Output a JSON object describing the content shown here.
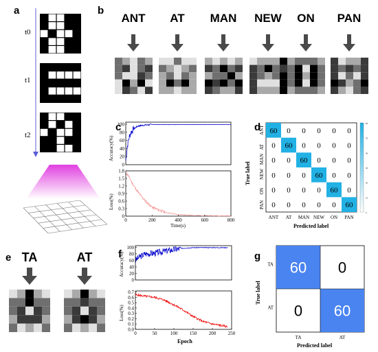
{
  "panels": {
    "a": "a",
    "b": "b",
    "c": "c",
    "d": "d",
    "e": "e",
    "f": "f",
    "g": "g"
  },
  "time_labels": [
    "t0",
    "t1",
    "t2"
  ],
  "patterns_a": [
    [
      1,
      0,
      0,
      1,
      1,
      1,
      0,
      0,
      1,
      1,
      0,
      1,
      0,
      0,
      1,
      1,
      0,
      0,
      1,
      1,
      1,
      0,
      0,
      1,
      1
    ],
    [
      1,
      1,
      1,
      1,
      1,
      1,
      0,
      0,
      0,
      0,
      1,
      1,
      1,
      1,
      1,
      1,
      0,
      0,
      0,
      0,
      1,
      1,
      1,
      1,
      1
    ],
    [
      1,
      0,
      0,
      1,
      1,
      1,
      0,
      1,
      0,
      1,
      0,
      1,
      0,
      0,
      1,
      1,
      1,
      0,
      1,
      1,
      1,
      1,
      0,
      0,
      1
    ]
  ],
  "panel_b": {
    "words": [
      "ANT",
      "AT",
      "MAN",
      "NEW",
      "ON",
      "PAN"
    ],
    "grids": [
      [
        2,
        3,
        4,
        2,
        3,
        2,
        1,
        4,
        2,
        1,
        2,
        4,
        4,
        1,
        2,
        4,
        0,
        3,
        0,
        4,
        4,
        1,
        2,
        4,
        1
      ],
      [
        4,
        4,
        2,
        4,
        4,
        2,
        3,
        4,
        3,
        2,
        3,
        2,
        4,
        2,
        3,
        3,
        0,
        2,
        0,
        3,
        3,
        3,
        4,
        3,
        3
      ],
      [
        3,
        4,
        3,
        4,
        3,
        1,
        2,
        0,
        2,
        1,
        3,
        2,
        2,
        0,
        3,
        0,
        1,
        0,
        2,
        0,
        1,
        2,
        3,
        3,
        1
      ],
      [
        4,
        3,
        3,
        3,
        0,
        1,
        2,
        0,
        2,
        1,
        1,
        2,
        3,
        2,
        0,
        1,
        4,
        4,
        4,
        0,
        1,
        3,
        3,
        3,
        0
      ],
      [
        3,
        2,
        2,
        2,
        3,
        2,
        0,
        4,
        0,
        2,
        2,
        0,
        3,
        0,
        2,
        2,
        0,
        4,
        0,
        2,
        3,
        2,
        2,
        2,
        3
      ],
      [
        1,
        4,
        3,
        3,
        1,
        1,
        2,
        1,
        2,
        1,
        1,
        4,
        2,
        4,
        1,
        0,
        1,
        3,
        2,
        0,
        1,
        3,
        4,
        2,
        1
      ]
    ]
  },
  "panel_e": {
    "words": [
      "TA",
      "AT"
    ],
    "grids": [
      [
        4,
        3,
        0,
        3,
        4,
        2,
        2,
        0,
        2,
        2,
        2,
        1,
        4,
        1,
        2,
        3,
        1,
        1,
        1,
        3,
        2,
        4,
        3,
        4,
        2
      ],
      [
        4,
        3,
        0,
        3,
        4,
        2,
        2,
        1,
        2,
        2,
        2,
        1,
        4,
        1,
        2,
        3,
        1,
        0,
        1,
        3,
        2,
        4,
        3,
        4,
        2
      ]
    ]
  },
  "panel_c": {
    "acc_ylabel": "Accuracy(%)",
    "loss_ylabel": "Loss(%)",
    "xlabel": "Time(s)",
    "acc_ticks": [
      "0",
      "20",
      "40",
      "60",
      "80",
      "100"
    ],
    "loss_ticks": [
      "0",
      "0.3",
      "0.6",
      "0.9",
      "1.2",
      "1.5",
      "1.8"
    ],
    "x_ticks": [
      "0",
      "200",
      "400",
      "600",
      "800"
    ]
  },
  "panel_d": {
    "labels": [
      "ANT",
      "AT",
      "MAN",
      "NEW",
      "ON",
      "PAN"
    ],
    "ylabel": "True label",
    "xlabel": "Predicted label",
    "colorbar_ticks": [
      "60",
      "50",
      "40",
      "30",
      "20",
      "10",
      "0"
    ]
  },
  "panel_f": {
    "acc_ylabel": "Accuracy(%)",
    "loss_ylabel": "Loss(%)",
    "xlabel": "Epoch",
    "acc_ticks": [
      "0",
      "20",
      "40",
      "60",
      "80",
      "100"
    ],
    "loss_ticks": [
      "0.0",
      "0.1",
      "0.2",
      "0.3",
      "0.4",
      "0.5",
      "0.6",
      "0.7"
    ],
    "x_ticks": [
      "0",
      "50",
      "100",
      "150",
      "200",
      "250"
    ]
  },
  "panel_g": {
    "labels": [
      "TA",
      "AT"
    ],
    "ylabel": "True label",
    "xlabel": "Predicted label"
  },
  "colors": {
    "blue": "#0000cc",
    "red": "#ee0000",
    "pink": "#f4a0a0",
    "cm_d": "#22b1e4",
    "cm_g": "#4a84f0",
    "magenta": "#e040e0"
  },
  "chart_data": [
    {
      "type": "table",
      "title": "d",
      "rows": [
        "ANT",
        "AT",
        "MAN",
        "NEW",
        "ON",
        "PAN"
      ],
      "columns": [
        "ANT",
        "AT",
        "MAN",
        "NEW",
        "ON",
        "PAN"
      ],
      "values": [
        [
          60,
          0,
          0,
          0,
          0,
          0
        ],
        [
          0,
          60,
          0,
          0,
          0,
          0
        ],
        [
          0,
          0,
          60,
          0,
          0,
          0
        ],
        [
          0,
          0,
          0,
          60,
          0,
          0
        ],
        [
          0,
          0,
          0,
          0,
          60,
          0
        ],
        [
          0,
          0,
          0,
          0,
          0,
          60
        ]
      ],
      "xlabel": "Predicted label",
      "ylabel": "True label"
    },
    {
      "type": "table",
      "title": "g",
      "rows": [
        "TA",
        "AT"
      ],
      "columns": [
        "TA",
        "AT"
      ],
      "values": [
        [
          60,
          0
        ],
        [
          0,
          60
        ]
      ],
      "xlabel": "Predicted label",
      "ylabel": "True label"
    },
    {
      "type": "line",
      "title": "c",
      "xlabel": "Time(s)",
      "xlim": [
        0,
        800
      ],
      "series": [
        {
          "name": "Accuracy(%)",
          "x": [
            0,
            10,
            20,
            30,
            40,
            60,
            80,
            100,
            150,
            200,
            800
          ],
          "values": [
            10,
            40,
            60,
            72,
            80,
            88,
            93,
            96,
            98,
            99,
            99
          ]
        },
        {
          "name": "Loss(%)",
          "x": [
            0,
            20,
            50,
            100,
            150,
            200,
            300,
            400,
            500,
            600,
            800
          ],
          "values": [
            1.75,
            1.6,
            1.3,
            0.9,
            0.6,
            0.35,
            0.15,
            0.06,
            0.03,
            0.02,
            0.01
          ]
        }
      ]
    },
    {
      "type": "line",
      "title": "f",
      "xlabel": "Epoch",
      "xlim": [
        0,
        250
      ],
      "series": [
        {
          "name": "Accuracy(%)",
          "x": [
            0,
            10,
            25,
            50,
            75,
            100,
            125,
            150,
            200,
            240
          ],
          "values": [
            60,
            70,
            80,
            82,
            88,
            93,
            97,
            99,
            99,
            99
          ]
        },
        {
          "name": "Loss(%)",
          "x": [
            0,
            25,
            50,
            75,
            100,
            125,
            150,
            175,
            200,
            225,
            240
          ],
          "values": [
            0.65,
            0.62,
            0.6,
            0.55,
            0.46,
            0.36,
            0.24,
            0.15,
            0.1,
            0.07,
            0.05
          ]
        }
      ]
    }
  ]
}
